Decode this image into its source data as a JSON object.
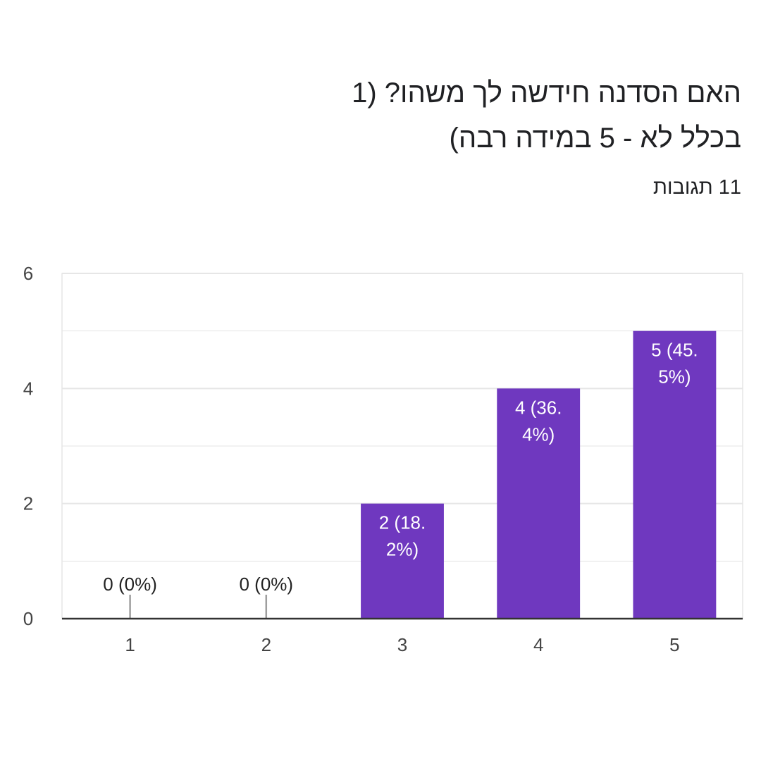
{
  "header": {
    "title_line1": "האם הסדנה חידשה לך משהו? (1",
    "title_line2": "בכלל לא - 5 במידה רבה)",
    "responses": "11 תגובות"
  },
  "colors": {
    "bar": "#6f38bf",
    "grid": "#e6e6e6",
    "axis": "#333333",
    "zero_marker": "#9e9e9e"
  },
  "chart_data": {
    "type": "bar",
    "categories": [
      "1",
      "2",
      "3",
      "4",
      "5"
    ],
    "values": [
      0,
      0,
      2,
      4,
      5
    ],
    "labels": [
      "0 (0%)",
      "0 (0%)",
      "2 (18.\n2%)",
      "4 (36.\n4%)",
      "5 (45.\n5%)"
    ],
    "ylim": [
      0,
      6
    ],
    "yticks": [
      0,
      2,
      4,
      6
    ],
    "minor_grid_step": 1,
    "grid": true,
    "title": "",
    "xlabel": "",
    "ylabel": ""
  }
}
